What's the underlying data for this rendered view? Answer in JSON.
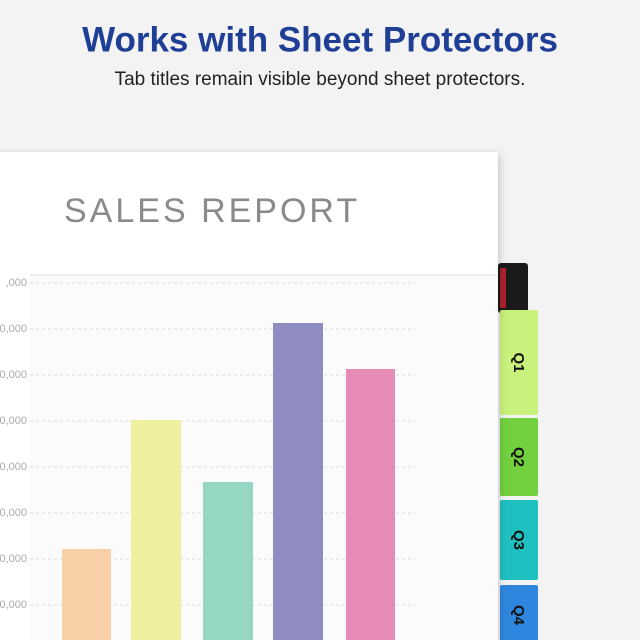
{
  "header": {
    "title": "Works with Sheet Protectors",
    "subtitle": "Tab titles remain visible beyond sheet protectors."
  },
  "sheet": {
    "title": "SALES REPORT",
    "tick_labels": [
      ",000",
      "0,000",
      "0,000",
      "0,000",
      "0,000",
      "0,000",
      "0,000",
      "0,000"
    ]
  },
  "tabs": [
    "Q1",
    "Q2",
    "Q3",
    "Q4"
  ]
}
